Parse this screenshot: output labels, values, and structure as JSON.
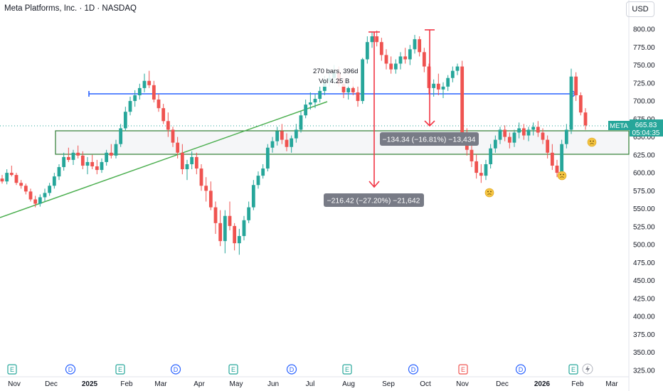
{
  "header": {
    "title": "Meta Platforms, Inc. · 1D · NASDAQ",
    "currency": "USD"
  },
  "price_label": {
    "ticker": "META",
    "price": "665.83",
    "countdown": "05:04:35"
  },
  "measure_tool": {
    "bars": "270 bars, 396d",
    "volume": "Vol 4.25 B"
  },
  "range_labels": {
    "first": "−216.42 (−27.20%) −21,642",
    "second": "−134.34 (−16.81%) −13,434"
  },
  "event_badges": {
    "earnings": "E",
    "dividend": "D"
  },
  "colors": {
    "up": "#26a69a",
    "down": "#ef5350",
    "blue_line": "#2962ff",
    "green_line": "#4caf50",
    "zone_border": "#2e7d32",
    "red_arrow": "#f23645"
  },
  "chart_data": {
    "type": "candlestick",
    "title": "Meta Platforms, Inc. · 1D · NASDAQ",
    "y_axis_labels": [
      "800.00",
      "775.00",
      "750.00",
      "725.00",
      "700.00",
      "675.00",
      "650.00",
      "625.00",
      "600.00",
      "575.00",
      "550.00",
      "525.00",
      "500.00",
      "475.00",
      "450.00",
      "425.00",
      "400.00",
      "375.00",
      "350.00",
      "325.00"
    ],
    "x_axis_labels": [
      "Nov",
      "Dec",
      "2025",
      "Feb",
      "Mar",
      "Apr",
      "May",
      "Jun",
      "Jul",
      "Aug",
      "Sep",
      "Oct",
      "Nov",
      "Dec",
      "2026",
      "Feb",
      "Mar"
    ],
    "ylim": [
      325,
      805
    ],
    "last_price": 665.83,
    "series": [
      {
        "values": [
          [
            592,
            597,
            585,
            588
          ],
          [
            588,
            605,
            584,
            600
          ],
          [
            600,
            610,
            595,
            597
          ],
          [
            597,
            600,
            583,
            586
          ],
          [
            586,
            590,
            578,
            582
          ],
          [
            582,
            585,
            570,
            574
          ],
          [
            574,
            578,
            560,
            563
          ],
          [
            563,
            568,
            552,
            557
          ],
          [
            557,
            570,
            553,
            566
          ],
          [
            566,
            578,
            560,
            572
          ],
          [
            572,
            586,
            568,
            582
          ],
          [
            582,
            600,
            578,
            595
          ],
          [
            595,
            612,
            590,
            608
          ],
          [
            608,
            628,
            603,
            622
          ],
          [
            622,
            635,
            615,
            618
          ],
          [
            618,
            632,
            611,
            628
          ],
          [
            628,
            638,
            620,
            624
          ],
          [
            624,
            630,
            605,
            610
          ],
          [
            610,
            622,
            598,
            615
          ],
          [
            615,
            625,
            605,
            609
          ],
          [
            609,
            618,
            598,
            604
          ],
          [
            604,
            620,
            600,
            615
          ],
          [
            615,
            632,
            610,
            628
          ],
          [
            628,
            640,
            620,
            624
          ],
          [
            624,
            646,
            620,
            640
          ],
          [
            640,
            668,
            636,
            662
          ],
          [
            662,
            692,
            658,
            685
          ],
          [
            685,
            706,
            680,
            700
          ],
          [
            700,
            715,
            692,
            708
          ],
          [
            708,
            724,
            702,
            718
          ],
          [
            718,
            738,
            712,
            728
          ],
          [
            728,
            742,
            718,
            722
          ],
          [
            722,
            728,
            698,
            702
          ],
          [
            702,
            710,
            685,
            690
          ],
          [
            690,
            696,
            668,
            672
          ],
          [
            672,
            684,
            650,
            660
          ],
          [
            660,
            664,
            636,
            642
          ],
          [
            642,
            650,
            620,
            628
          ],
          [
            628,
            640,
            598,
            605
          ],
          [
            605,
            618,
            590,
            612
          ],
          [
            612,
            630,
            605,
            622
          ],
          [
            622,
            628,
            598,
            606
          ],
          [
            606,
            612,
            575,
            582
          ],
          [
            582,
            594,
            560,
            575
          ],
          [
            575,
            588,
            548,
            552
          ],
          [
            552,
            560,
            515,
            530
          ],
          [
            530,
            548,
            498,
            505
          ],
          [
            505,
            548,
            488,
            540
          ],
          [
            540,
            560,
            520,
            526
          ],
          [
            526,
            530,
            492,
            502
          ],
          [
            502,
            522,
            486,
            512
          ],
          [
            512,
            540,
            506,
            534
          ],
          [
            534,
            560,
            530,
            552
          ],
          [
            552,
            590,
            548,
            583
          ],
          [
            583,
            602,
            578,
            596
          ],
          [
            596,
            612,
            592,
            606
          ],
          [
            606,
            640,
            602,
            635
          ],
          [
            635,
            650,
            628,
            644
          ],
          [
            644,
            664,
            638,
            658
          ],
          [
            658,
            668,
            640,
            646
          ],
          [
            646,
            655,
            630,
            636
          ],
          [
            636,
            652,
            628,
            648
          ],
          [
            648,
            668,
            642,
            660
          ],
          [
            660,
            686,
            656,
            680
          ],
          [
            680,
            702,
            676,
            695
          ],
          [
            695,
            712,
            688,
            698
          ],
          [
            698,
            710,
            690,
            703
          ],
          [
            703,
            720,
            698,
            714
          ],
          [
            714,
            735,
            708,
            728
          ],
          [
            728,
            744,
            720,
            732
          ],
          [
            732,
            750,
            726,
            740
          ],
          [
            740,
            748,
            720,
            724
          ],
          [
            724,
            732,
            704,
            712
          ],
          [
            712,
            724,
            702,
            718
          ],
          [
            718,
            730,
            708,
            712
          ],
          [
            712,
            720,
            692,
            700
          ],
          [
            700,
            760,
            696,
            758
          ],
          [
            758,
            790,
            752,
            782
          ],
          [
            782,
            796,
            774,
            790
          ],
          [
            790,
            798,
            776,
            782
          ],
          [
            782,
            788,
            756,
            764
          ],
          [
            764,
            772,
            744,
            752
          ],
          [
            752,
            762,
            738,
            744
          ],
          [
            744,
            758,
            738,
            752
          ],
          [
            752,
            768,
            744,
            762
          ],
          [
            762,
            774,
            752,
            758
          ],
          [
            758,
            778,
            750,
            772
          ],
          [
            772,
            792,
            766,
            786
          ],
          [
            786,
            790,
            762,
            768
          ],
          [
            768,
            774,
            740,
            748
          ],
          [
            748,
            752,
            710,
            718
          ],
          [
            718,
            730,
            706,
            724
          ],
          [
            724,
            738,
            708,
            716
          ],
          [
            716,
            726,
            704,
            720
          ],
          [
            720,
            736,
            714,
            732
          ],
          [
            732,
            748,
            726,
            742
          ],
          [
            742,
            752,
            736,
            748
          ],
          [
            748,
            756,
            640,
            650
          ],
          [
            650,
            662,
            624,
            632
          ],
          [
            632,
            644,
            608,
            616
          ],
          [
            616,
            626,
            592,
            600
          ],
          [
            600,
            612,
            586,
            596
          ],
          [
            596,
            618,
            590,
            612
          ],
          [
            612,
            640,
            606,
            634
          ],
          [
            634,
            652,
            628,
            646
          ],
          [
            646,
            664,
            640,
            660
          ],
          [
            660,
            666,
            644,
            650
          ],
          [
            650,
            656,
            634,
            642
          ],
          [
            642,
            660,
            636,
            656
          ],
          [
            656,
            670,
            648,
            662
          ],
          [
            662,
            668,
            646,
            652
          ],
          [
            652,
            664,
            644,
            660
          ],
          [
            660,
            670,
            652,
            664
          ],
          [
            664,
            672,
            650,
            656
          ],
          [
            656,
            662,
            640,
            646
          ],
          [
            646,
            652,
            620,
            628
          ],
          [
            628,
            640,
            604,
            610
          ],
          [
            610,
            618,
            594,
            600
          ],
          [
            600,
            646,
            596,
            640
          ],
          [
            640,
            668,
            634,
            660
          ],
          [
            660,
            745,
            654,
            734
          ],
          [
            734,
            740,
            700,
            708
          ],
          [
            708,
            712,
            680,
            684
          ],
          [
            684,
            690,
            660,
            666
          ]
        ]
      }
    ],
    "annotations": {
      "horizontal_blue_line": 707,
      "zone_top": 656,
      "zone_bottom": 624,
      "measure_label": "270 bars, 396d · Vol 4.25 B",
      "range_1": "−216.42 (−27.20%) −21,642",
      "range_2": "−134.34 (−16.81%) −13,434"
    }
  }
}
